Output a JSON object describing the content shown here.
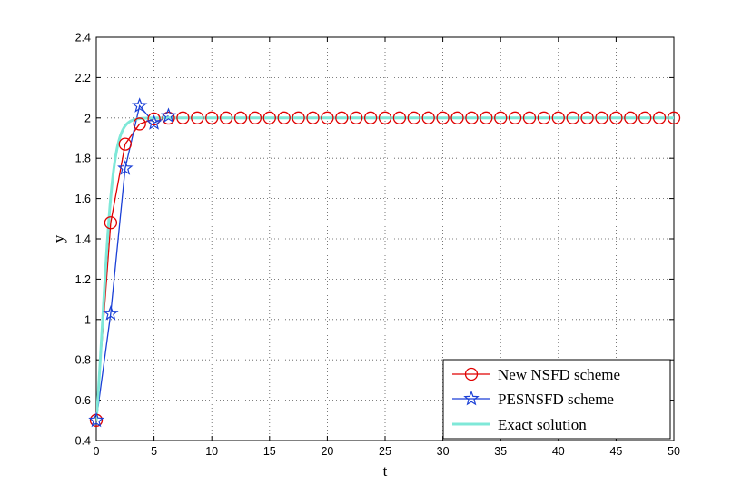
{
  "chart_data": {
    "type": "line",
    "title": "",
    "xlabel": "t",
    "ylabel": "y",
    "xlim": [
      0,
      50
    ],
    "ylim": [
      0.4,
      2.4
    ],
    "xticks": [
      "0",
      "5",
      "10",
      "15",
      "20",
      "25",
      "30",
      "35",
      "40",
      "45",
      "50"
    ],
    "yticks": [
      "0.4",
      "0.6",
      "0.8",
      "1",
      "1.2",
      "1.4",
      "1.6",
      "1.8",
      "2",
      "2.2",
      "2.4"
    ],
    "grid": true,
    "legend_position": "bottom-right",
    "series": [
      {
        "name": "New NSFD scheme",
        "color": "#e00000",
        "marker": "circle",
        "x": [
          0,
          1.25,
          2.5,
          3.75,
          5,
          6.25,
          7.5,
          8.75,
          10,
          11.25,
          12.5,
          13.75,
          15,
          16.25,
          17.5,
          18.75,
          20,
          21.25,
          22.5,
          23.75,
          25,
          26.25,
          27.5,
          28.75,
          30,
          31.25,
          32.5,
          33.75,
          35,
          36.25,
          37.5,
          38.75,
          40,
          41.25,
          42.5,
          43.75,
          45,
          46.25,
          47.5,
          48.75,
          50
        ],
        "y": [
          0.5,
          1.48,
          1.87,
          1.97,
          1.995,
          1.999,
          2,
          2,
          2,
          2,
          2,
          2,
          2,
          2,
          2,
          2,
          2,
          2,
          2,
          2,
          2,
          2,
          2,
          2,
          2,
          2,
          2,
          2,
          2,
          2,
          2,
          2,
          2,
          2,
          2,
          2,
          2,
          2,
          2,
          2,
          2
        ]
      },
      {
        "name": "PESNSFD scheme",
        "color": "#1a3fd6",
        "marker": "star",
        "x": [
          0,
          1.25,
          2.5,
          3.75,
          5,
          6.25
        ],
        "y": [
          0.5,
          1.03,
          1.75,
          2.06,
          1.975,
          2.01
        ]
      },
      {
        "name": "Exact solution",
        "color": "#7fe8d8",
        "marker": "none",
        "function": "2/(1+3*exp(-2*t))",
        "x_range": [
          0,
          50
        ]
      }
    ]
  }
}
